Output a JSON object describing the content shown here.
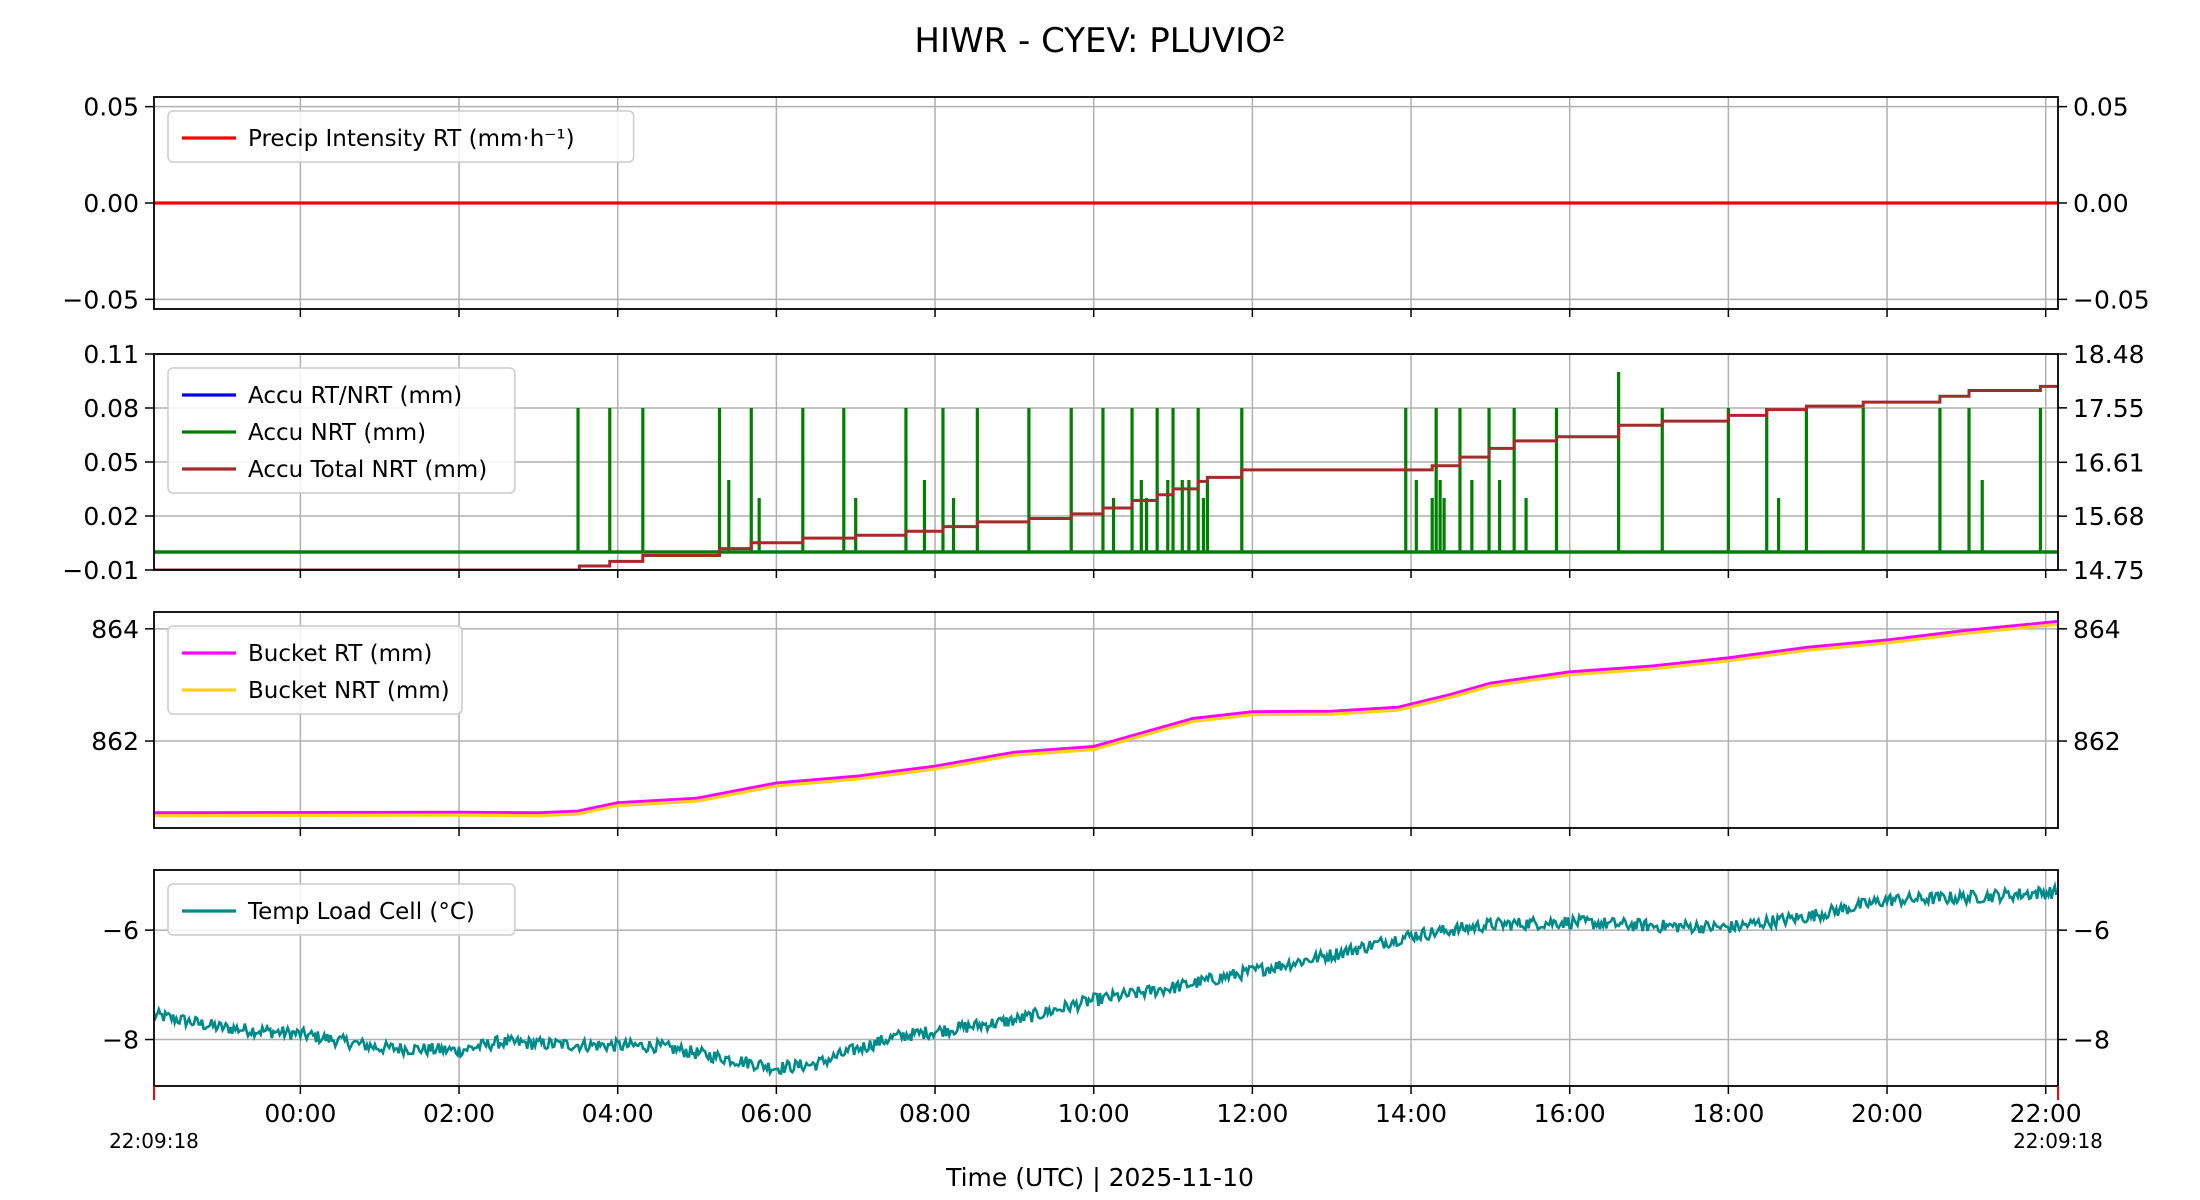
{
  "chart_data": {
    "title": "HIWR - CYEV: PLUVIO²",
    "xlabel": "Time (UTC)  |  2025-11-10",
    "x_range": [
      "2025-11-09 22:09:18",
      "2025-11-10 22:09:18"
    ],
    "x_ticks": [
      "00:00",
      "02:00",
      "04:00",
      "06:00",
      "08:00",
      "10:00",
      "12:00",
      "14:00",
      "16:00",
      "18:00",
      "20:00",
      "22:00"
    ],
    "x_edge_labels": [
      "22:09:18",
      "22:09:18"
    ],
    "grid": true,
    "panels": [
      {
        "type": "line",
        "ylim": [
          -0.055,
          0.055
        ],
        "yticks": [
          "0.05",
          "0.00",
          "−0.05"
        ],
        "ytick_values": [
          0.05,
          0.0,
          -0.05
        ],
        "legend_position": "upper-left",
        "series": [
          {
            "name": "Precip Intensity RT (mm·h⁻¹)",
            "color": "#ff0000",
            "points": [
              [
                "2025-11-09 22:09",
                0.0
              ],
              [
                "2025-11-10 22:09",
                0.0
              ]
            ]
          }
        ]
      },
      {
        "type": "line",
        "ylim": [
          -0.01,
          0.11
        ],
        "yticks": [
          "0.11",
          "0.08",
          "0.05",
          "0.02",
          "−0.01"
        ],
        "ytick_values": [
          0.11,
          0.08,
          0.05,
          0.02,
          -0.01
        ],
        "ytick_color": "#0000ff",
        "ylim_right": [
          14.75,
          18.48
        ],
        "yticks_right": [
          "18.48",
          "17.55",
          "16.61",
          "15.68",
          "14.75"
        ],
        "ytick_values_right": [
          18.48,
          17.55,
          16.61,
          15.68,
          14.75
        ],
        "ytick_color_right": "#a52a2a",
        "legend_position": "upper-left",
        "series": [
          {
            "name": "Accu RT/NRT (mm)",
            "color": "#0000ff",
            "axis": "left",
            "style": "line",
            "points": [
              [
                "2025-11-09 22:09",
                0.0
              ],
              [
                "2025-11-10 22:09",
                0.0
              ]
            ]
          },
          {
            "name": "Accu NRT (mm)",
            "color": "#008000",
            "axis": "left",
            "style": "spikes",
            "baseline": 0.0,
            "spikes": [
              [
                "03:30",
                0.08
              ],
              [
                "03:54",
                0.08
              ],
              [
                "04:19",
                0.08
              ],
              [
                "05:17",
                0.08
              ],
              [
                "05:24",
                0.04
              ],
              [
                "05:41",
                0.08
              ],
              [
                "05:47",
                0.03
              ],
              [
                "06:20",
                0.08
              ],
              [
                "06:51",
                0.08
              ],
              [
                "07:00",
                0.03
              ],
              [
                "07:38",
                0.08
              ],
              [
                "07:52",
                0.04
              ],
              [
                "08:06",
                0.08
              ],
              [
                "08:14",
                0.03
              ],
              [
                "08:32",
                0.08
              ],
              [
                "09:11",
                0.08
              ],
              [
                "09:43",
                0.08
              ],
              [
                "10:07",
                0.08
              ],
              [
                "10:15",
                0.03
              ],
              [
                "10:29",
                0.08
              ],
              [
                "10:36",
                0.04
              ],
              [
                "10:40",
                0.03
              ],
              [
                "10:48",
                0.08
              ],
              [
                "10:56",
                0.04
              ],
              [
                "11:00",
                0.08
              ],
              [
                "11:07",
                0.04
              ],
              [
                "11:12",
                0.04
              ],
              [
                "11:19",
                0.08
              ],
              [
                "11:23",
                0.03
              ],
              [
                "11:26",
                0.04
              ],
              [
                "11:52",
                0.08
              ],
              [
                "13:56",
                0.08
              ],
              [
                "14:04",
                0.04
              ],
              [
                "14:16",
                0.03
              ],
              [
                "14:19",
                0.08
              ],
              [
                "14:22",
                0.04
              ],
              [
                "14:25",
                0.03
              ],
              [
                "14:37",
                0.08
              ],
              [
                "14:46",
                0.04
              ],
              [
                "14:59",
                0.08
              ],
              [
                "15:07",
                0.04
              ],
              [
                "15:18",
                0.08
              ],
              [
                "15:27",
                0.03
              ],
              [
                "15:50",
                0.08
              ],
              [
                "16:37",
                0.1
              ],
              [
                "17:10",
                0.08
              ],
              [
                "18:00",
                0.08
              ],
              [
                "18:29",
                0.08
              ],
              [
                "18:38",
                0.03
              ],
              [
                "18:59",
                0.08
              ],
              [
                "19:42",
                0.08
              ],
              [
                "20:40",
                0.08
              ],
              [
                "21:02",
                0.08
              ],
              [
                "21:12",
                0.04
              ],
              [
                "21:56",
                0.08
              ]
            ]
          },
          {
            "name": "Accu Total NRT (mm)",
            "color": "#a52a2a",
            "axis": "right",
            "style": "step",
            "steps": [
              [
                "22:09",
                14.75
              ],
              [
                "03:30",
                14.75
              ],
              [
                "03:31",
                14.82
              ],
              [
                "03:54",
                14.9
              ],
              [
                "04:19",
                15.0
              ],
              [
                "05:17",
                15.12
              ],
              [
                "05:41",
                15.22
              ],
              [
                "06:20",
                15.3
              ],
              [
                "07:00",
                15.35
              ],
              [
                "07:38",
                15.42
              ],
              [
                "08:06",
                15.5
              ],
              [
                "08:32",
                15.58
              ],
              [
                "09:11",
                15.64
              ],
              [
                "09:43",
                15.72
              ],
              [
                "10:07",
                15.82
              ],
              [
                "10:29",
                15.95
              ],
              [
                "10:48",
                16.05
              ],
              [
                "11:00",
                16.15
              ],
              [
                "11:19",
                16.28
              ],
              [
                "11:26",
                16.35
              ],
              [
                "11:52",
                16.48
              ],
              [
                "13:56",
                16.48
              ],
              [
                "14:16",
                16.55
              ],
              [
                "14:37",
                16.7
              ],
              [
                "14:59",
                16.85
              ],
              [
                "15:18",
                16.98
              ],
              [
                "15:50",
                17.05
              ],
              [
                "16:37",
                17.25
              ],
              [
                "17:10",
                17.32
              ],
              [
                "18:00",
                17.42
              ],
              [
                "18:29",
                17.52
              ],
              [
                "18:59",
                17.58
              ],
              [
                "19:42",
                17.65
              ],
              [
                "20:40",
                17.75
              ],
              [
                "21:02",
                17.85
              ],
              [
                "21:56",
                17.92
              ],
              [
                "22:09",
                17.92
              ]
            ]
          }
        ]
      },
      {
        "type": "line",
        "ylim": [
          860.45,
          864.3
        ],
        "yticks": [
          "864",
          "862"
        ],
        "ytick_values": [
          864,
          862
        ],
        "legend_position": "upper-left",
        "series": [
          {
            "name": "Bucket RT (mm)",
            "color": "#ff00ff",
            "offset": 0.05
          },
          {
            "name": "Bucket NRT (mm)",
            "color": "#ffd11a",
            "offset": 0.0
          }
        ],
        "shared_points": [
          [
            "22:09",
            860.67
          ],
          [
            "02:00",
            860.68
          ],
          [
            "03:00",
            860.67
          ],
          [
            "03:30",
            860.7
          ],
          [
            "04:00",
            860.85
          ],
          [
            "05:00",
            860.93
          ],
          [
            "06:00",
            861.2
          ],
          [
            "07:00",
            861.32
          ],
          [
            "08:00",
            861.5
          ],
          [
            "09:00",
            861.75
          ],
          [
            "10:00",
            861.85
          ],
          [
            "10:30",
            862.05
          ],
          [
            "11:15",
            862.35
          ],
          [
            "12:00",
            862.47
          ],
          [
            "13:00",
            862.48
          ],
          [
            "13:50",
            862.55
          ],
          [
            "14:30",
            862.78
          ],
          [
            "15:00",
            862.98
          ],
          [
            "16:00",
            863.18
          ],
          [
            "17:00",
            863.28
          ],
          [
            "18:00",
            863.43
          ],
          [
            "19:00",
            863.62
          ],
          [
            "20:00",
            863.75
          ],
          [
            "21:00",
            863.92
          ],
          [
            "22:09",
            864.08
          ]
        ]
      },
      {
        "type": "line",
        "ylim": [
          -8.85,
          -4.9
        ],
        "yticks": [
          "−6",
          "−8"
        ],
        "ytick_values": [
          -6,
          -8
        ],
        "legend_position": "upper-left",
        "series": [
          {
            "name": "Temp Load Cell (°C)",
            "color": "#008b8b",
            "noise": 0.12,
            "points": [
              [
                "22:09",
                -7.55
              ],
              [
                "23:00",
                -7.78
              ],
              [
                "00:00",
                -7.9
              ],
              [
                "01:00",
                -8.15
              ],
              [
                "02:00",
                -8.2
              ],
              [
                "02:30",
                -8.05
              ],
              [
                "03:30",
                -8.1
              ],
              [
                "04:30",
                -8.12
              ],
              [
                "05:30",
                -8.38
              ],
              [
                "06:00",
                -8.52
              ],
              [
                "06:30",
                -8.45
              ],
              [
                "07:00",
                -8.18
              ],
              [
                "07:30",
                -7.95
              ],
              [
                "08:00",
                -7.85
              ],
              [
                "09:00",
                -7.65
              ],
              [
                "10:00",
                -7.28
              ],
              [
                "11:00",
                -7.05
              ],
              [
                "12:00",
                -6.75
              ],
              [
                "13:00",
                -6.45
              ],
              [
                "14:00",
                -6.1
              ],
              [
                "15:00",
                -5.9
              ],
              [
                "16:00",
                -5.85
              ],
              [
                "17:00",
                -5.92
              ],
              [
                "18:00",
                -5.95
              ],
              [
                "19:00",
                -5.75
              ],
              [
                "20:00",
                -5.45
              ],
              [
                "21:00",
                -5.4
              ],
              [
                "22:09",
                -5.3
              ]
            ]
          }
        ]
      }
    ]
  }
}
